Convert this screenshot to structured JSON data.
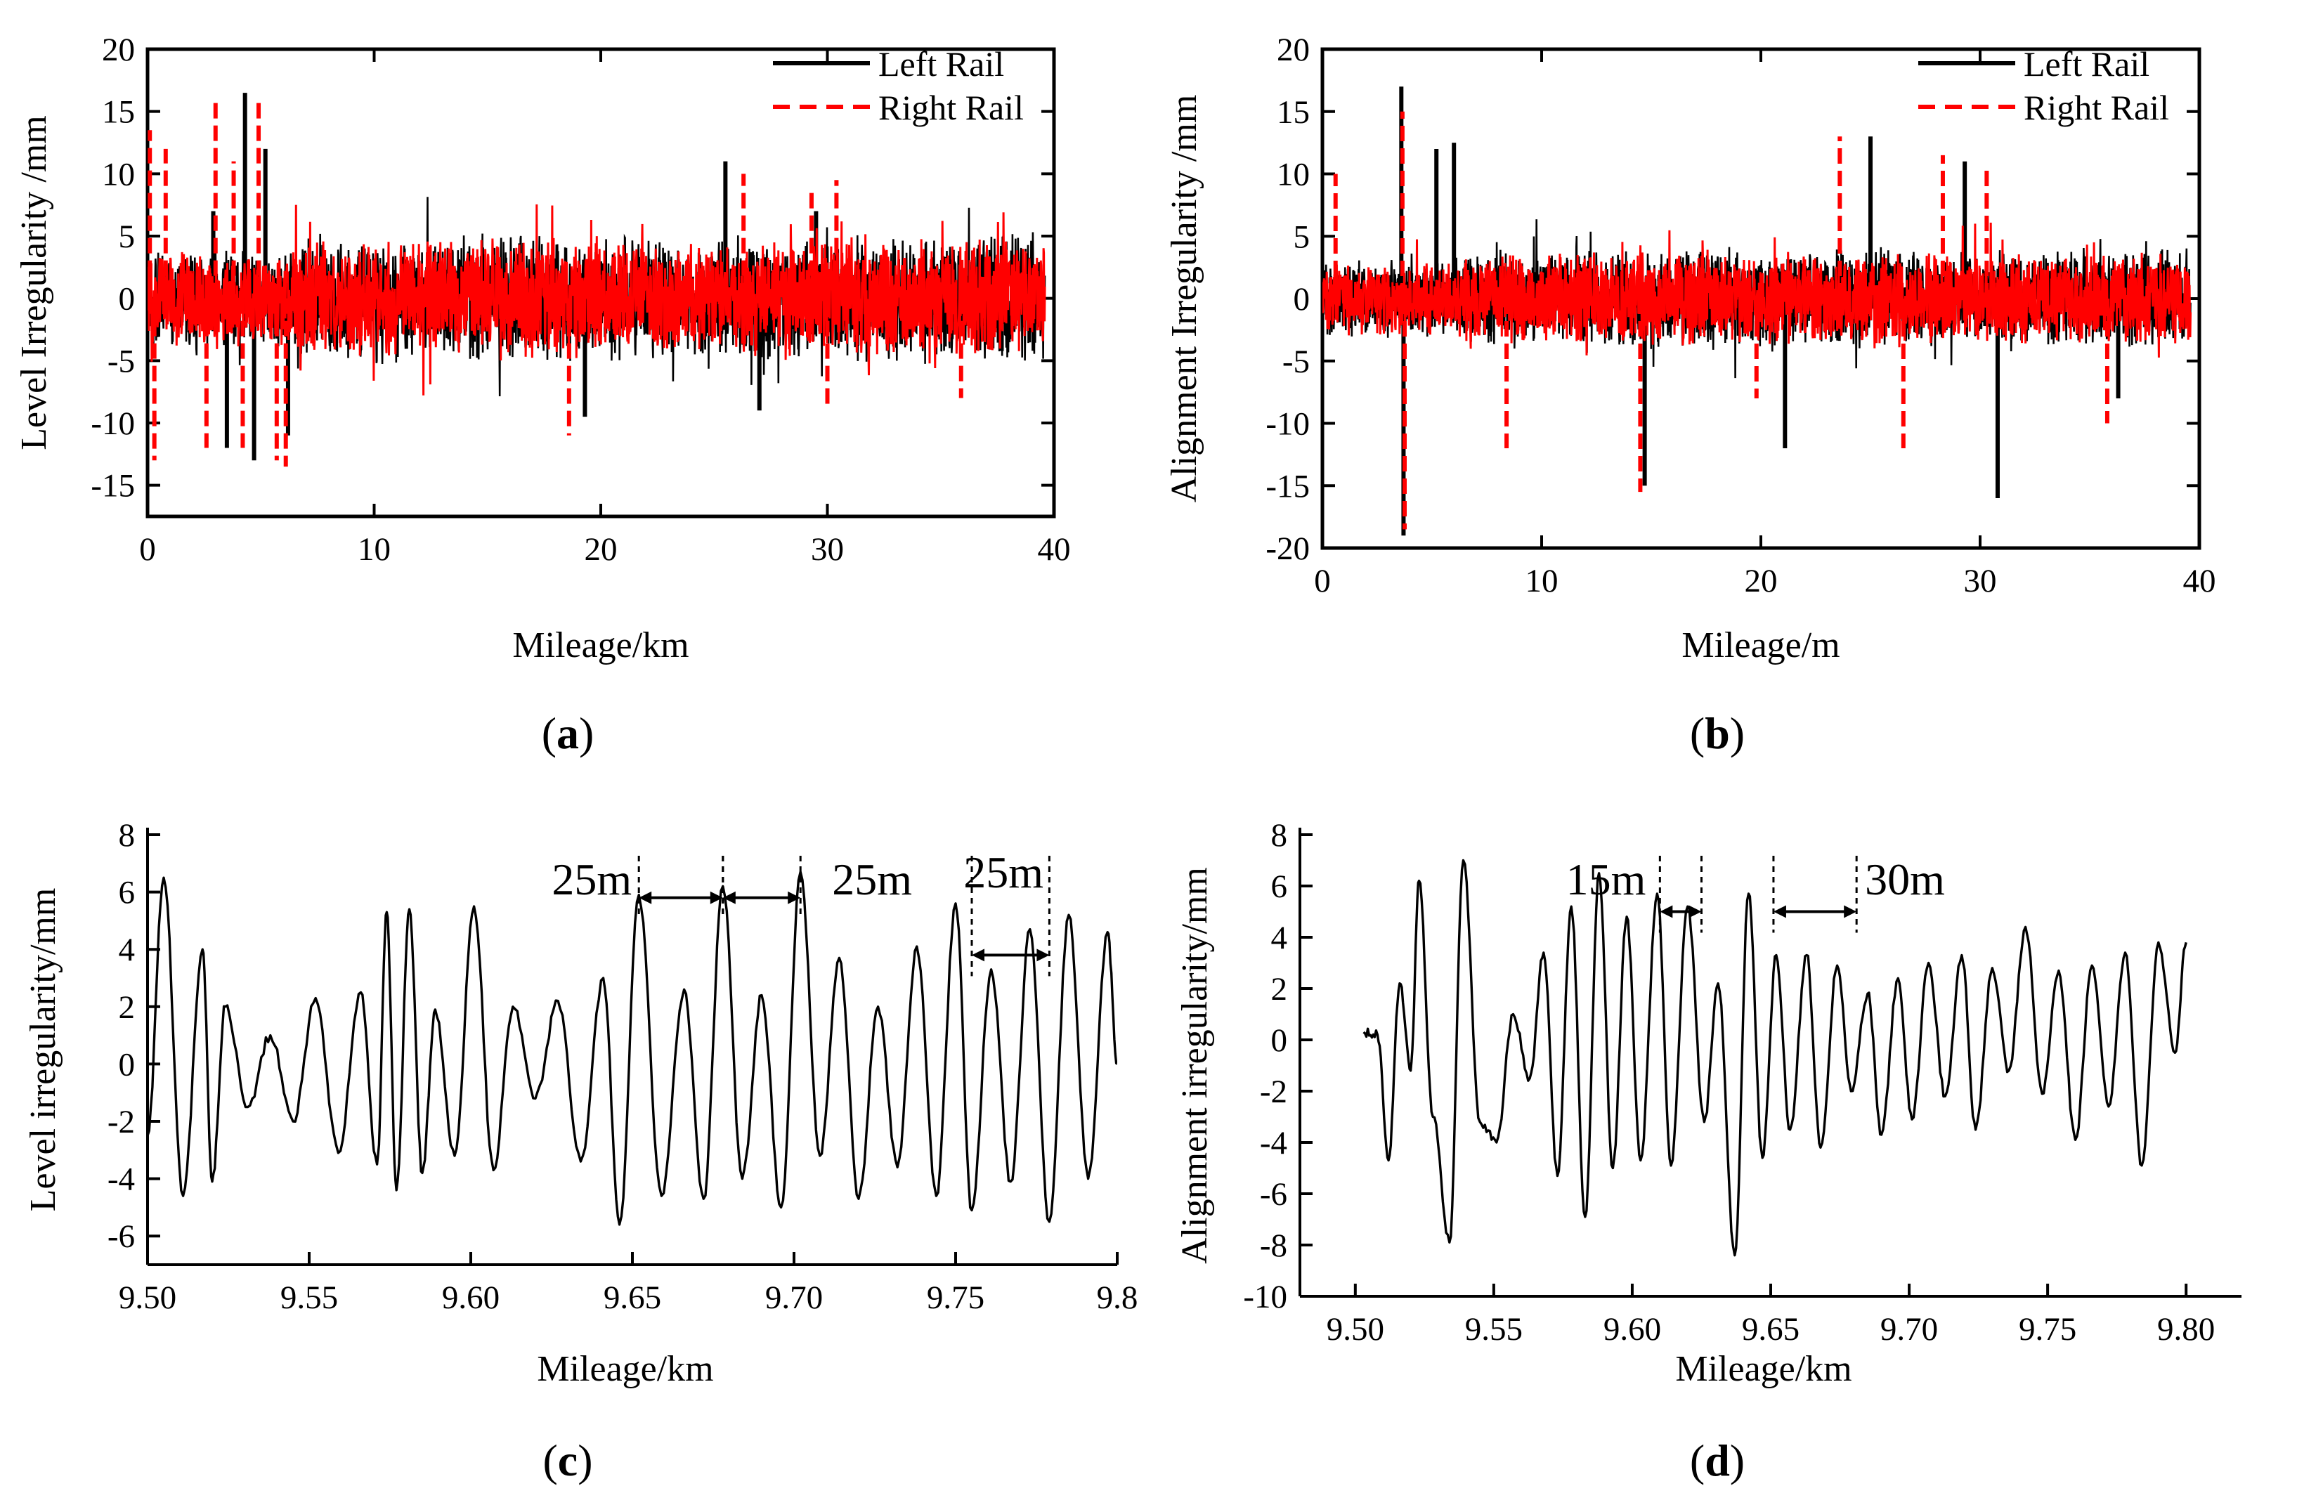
{
  "chart_data": [
    {
      "id": "a",
      "type": "line",
      "panel_label": "a",
      "xlabel": "Mileage/km",
      "ylabel": "Level Irregularity /mm",
      "xlim": [
        0,
        40
      ],
      "ylim": [
        -17.5,
        20
      ],
      "xticks": [
        0,
        10,
        20,
        30,
        40
      ],
      "yticks": [
        -15,
        -10,
        -5,
        0,
        5,
        10,
        15,
        20
      ],
      "legend": [
        "Left Rail",
        "Right Rail"
      ],
      "legend_position": "top-right",
      "series": [
        {
          "name": "Left Rail",
          "color": "#000000",
          "style": "solid",
          "amp": 4.5,
          "spikes": [
            [
              2.9,
              7
            ],
            [
              3.5,
              -12
            ],
            [
              4.3,
              16.5
            ],
            [
              4.7,
              -13
            ],
            [
              5.2,
              12
            ],
            [
              6.2,
              -11
            ],
            [
              19.3,
              -9.5
            ],
            [
              25.5,
              11
            ],
            [
              27,
              -9
            ],
            [
              29.5,
              7
            ]
          ]
        },
        {
          "name": "Right Rail",
          "color": "#ff0000",
          "style": "dashed",
          "amp": 4.2,
          "spikes": [
            [
              0.1,
              13.5
            ],
            [
              0.3,
              -13
            ],
            [
              0.8,
              12
            ],
            [
              2.6,
              -12
            ],
            [
              3.0,
              16
            ],
            [
              3.8,
              11
            ],
            [
              4.2,
              -12
            ],
            [
              4.9,
              16
            ],
            [
              5.7,
              -13
            ],
            [
              6.1,
              -13.5
            ],
            [
              18.6,
              -11
            ],
            [
              26.3,
              10
            ],
            [
              29.3,
              8.5
            ],
            [
              30.4,
              9.5
            ],
            [
              30.0,
              -8.5
            ],
            [
              35.9,
              -8
            ]
          ]
        }
      ]
    },
    {
      "id": "b",
      "type": "line",
      "panel_label": "b",
      "xlabel": "Mileage/m",
      "ylabel": "Alignment Irregularity /mm",
      "xlim": [
        0,
        40
      ],
      "ylim": [
        -20,
        20
      ],
      "xticks": [
        0,
        10,
        20,
        30,
        40
      ],
      "yticks": [
        -20,
        -15,
        -10,
        -5,
        0,
        5,
        10,
        15,
        20
      ],
      "legend": [
        "Left Rail",
        "Right Rail"
      ],
      "legend_position": "top-right",
      "series": [
        {
          "name": "Left Rail",
          "color": "#000000",
          "style": "solid",
          "amp": 3.5,
          "spikes": [
            [
              3.6,
              17
            ],
            [
              3.7,
              -19
            ],
            [
              5.2,
              12
            ],
            [
              6.0,
              12.5
            ],
            [
              14.7,
              -15
            ],
            [
              21.1,
              -12
            ],
            [
              25.0,
              13
            ],
            [
              29.3,
              11
            ],
            [
              30.8,
              -16
            ],
            [
              36.3,
              -8
            ]
          ]
        },
        {
          "name": "Right Rail",
          "color": "#ff0000",
          "style": "dashed",
          "amp": 3.3,
          "spikes": [
            [
              3.65,
              15
            ],
            [
              3.75,
              -18.5
            ],
            [
              0.6,
              10
            ],
            [
              8.4,
              -12
            ],
            [
              14.5,
              -15.5
            ],
            [
              19.8,
              -8
            ],
            [
              23.6,
              13
            ],
            [
              26.5,
              -12
            ],
            [
              28.3,
              11.5
            ],
            [
              30.3,
              10.5
            ],
            [
              35.8,
              -10
            ]
          ]
        }
      ]
    },
    {
      "id": "c",
      "type": "line",
      "panel_label": "c",
      "xlabel": "Mileage/km",
      "ylabel": "Level irregularity/mm",
      "xlim": [
        9.5,
        9.8
      ],
      "ylim": [
        -7,
        8
      ],
      "xticks": [
        9.5,
        9.55,
        9.6,
        9.65,
        9.7,
        9.75,
        9.8
      ],
      "xtick_labels": [
        "9.50",
        "9.55",
        "9.60",
        "9.65",
        "9.70",
        "9.75",
        "9.8"
      ],
      "yticks": [
        -6,
        -4,
        -2,
        0,
        2,
        4,
        6,
        8
      ],
      "series": [
        {
          "name": "Level irregularity",
          "color": "#000000",
          "style": "solid",
          "x": [
            9.5,
            9.505,
            9.511,
            9.517,
            9.52,
            9.524,
            9.531,
            9.538,
            9.545,
            9.552,
            9.559,
            9.566,
            9.571,
            9.574,
            9.577,
            9.581,
            9.585,
            9.589,
            9.595,
            9.601,
            9.607,
            9.613,
            9.62,
            9.627,
            9.634,
            9.641,
            9.646,
            9.652,
            9.659,
            9.666,
            9.672,
            9.678,
            9.684,
            9.69,
            9.696,
            9.702,
            9.708,
            9.714,
            9.72,
            9.726,
            9.732,
            9.738,
            9.744,
            9.75,
            9.755,
            9.761,
            9.767,
            9.773,
            9.779,
            9.785,
            9.791,
            9.797,
            9.8
          ],
          "y": [
            -2.5,
            6.5,
            -4.6,
            4.0,
            -4.1,
            2.0,
            -1.5,
            1.0,
            -2.0,
            2.3,
            -3.1,
            2.5,
            -3.5,
            5.3,
            -4.4,
            5.4,
            -3.8,
            1.9,
            -3.2,
            5.5,
            -3.7,
            2.0,
            -1.2,
            2.2,
            -3.4,
            3.0,
            -5.6,
            5.9,
            -4.6,
            2.6,
            -4.7,
            6.2,
            -4.0,
            2.4,
            -5.0,
            6.7,
            -3.2,
            3.7,
            -4.7,
            2.0,
            -3.6,
            4.1,
            -4.6,
            5.6,
            -5.1,
            3.3,
            -4.1,
            4.7,
            -5.5,
            5.2,
            -4.0,
            4.6,
            0.0
          ]
        }
      ],
      "annotations": [
        {
          "text": "25m",
          "from": 9.652,
          "to": 9.678,
          "y": 5.8
        },
        {
          "text": "25m",
          "from": 9.678,
          "to": 9.702,
          "y": 5.8
        },
        {
          "text": "25m",
          "from": 9.755,
          "to": 9.779,
          "y": 3.8
        }
      ]
    },
    {
      "id": "d",
      "type": "line",
      "panel_label": "d",
      "xlabel": "Mileage/km",
      "ylabel": "Alignment irregularity/mm",
      "xlim": [
        9.48,
        9.82
      ],
      "ylim": [
        -10,
        8
      ],
      "xticks": [
        9.5,
        9.55,
        9.6,
        9.65,
        9.7,
        9.75,
        9.8
      ],
      "xtick_labels": [
        "9.50",
        "9.55",
        "9.60",
        "9.65",
        "9.70",
        "9.75",
        "9.80"
      ],
      "yticks": [
        -10,
        -8,
        -6,
        -4,
        -2,
        0,
        2,
        4,
        6,
        8
      ],
      "series": [
        {
          "name": "Alignment irregularity",
          "color": "#000000",
          "style": "solid",
          "x": [
            9.503,
            9.508,
            9.512,
            9.516,
            9.52,
            9.523,
            9.528,
            9.534,
            9.539,
            9.545,
            9.551,
            9.557,
            9.563,
            9.568,
            9.573,
            9.578,
            9.583,
            9.588,
            9.593,
            9.598,
            9.603,
            9.609,
            9.614,
            9.62,
            9.626,
            9.631,
            9.637,
            9.642,
            9.647,
            9.652,
            9.657,
            9.663,
            9.668,
            9.674,
            9.679,
            9.685,
            9.69,
            9.696,
            9.701,
            9.707,
            9.713,
            9.719,
            9.724,
            9.73,
            9.736,
            9.742,
            9.748,
            9.754,
            9.76,
            9.766,
            9.772,
            9.778,
            9.784,
            9.79,
            9.796,
            9.8
          ],
          "y": [
            0.3,
            0.2,
            -4.7,
            2.2,
            -1.2,
            6.2,
            -3.0,
            -7.9,
            7.0,
            -3.2,
            -4.0,
            1.0,
            -1.5,
            3.4,
            -5.3,
            5.2,
            -6.9,
            6.5,
            -5.0,
            4.8,
            -4.7,
            5.7,
            -4.9,
            5.2,
            -3.2,
            2.2,
            -8.4,
            5.7,
            -4.6,
            3.3,
            -3.5,
            3.3,
            -4.2,
            2.9,
            -2.0,
            1.8,
            -3.7,
            2.4,
            -3.1,
            3.0,
            -2.2,
            3.3,
            -3.5,
            2.8,
            -1.2,
            4.4,
            -2.1,
            2.7,
            -3.9,
            2.9,
            -2.6,
            3.4,
            -4.9,
            3.8,
            -0.5,
            3.8
          ]
        }
      ],
      "annotations": [
        {
          "text": "15m",
          "from": 9.61,
          "to": 9.625,
          "y": 5.0
        },
        {
          "text": "30m",
          "from": 9.651,
          "to": 9.681,
          "y": 5.0
        }
      ]
    }
  ]
}
